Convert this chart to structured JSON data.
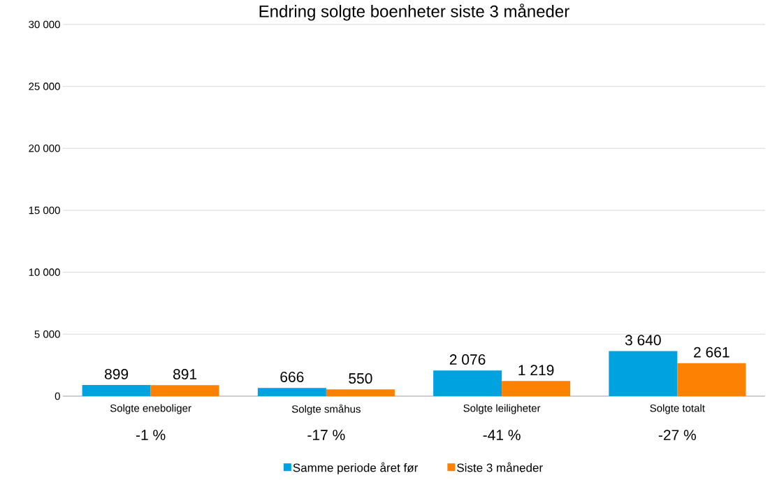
{
  "chart_data": {
    "type": "bar",
    "title": "Endring solgte boenheter siste 3 måneder",
    "categories": [
      "Solgte eneboliger",
      "Solgte småhus",
      "Solgte leiligheter",
      "Solgte totalt"
    ],
    "series": [
      {
        "name": "Samme periode året før",
        "color": "#00a2e0",
        "values": [
          899,
          666,
          2076,
          3640
        ],
        "value_labels": [
          "899",
          "666",
          "2 076",
          "3 640"
        ]
      },
      {
        "name": "Siste 3 måneder",
        "color": "#fd8204",
        "values": [
          891,
          550,
          1219,
          2661
        ],
        "value_labels": [
          "891",
          "550",
          "1 219",
          "2 661"
        ]
      }
    ],
    "ylim": [
      0,
      30000
    ],
    "yticks": [
      {
        "value": 0,
        "label": "0"
      },
      {
        "value": 5000,
        "label": "5 000"
      },
      {
        "value": 10000,
        "label": "10 000"
      },
      {
        "value": 15000,
        "label": "15 000"
      },
      {
        "value": 20000,
        "label": "20 000"
      },
      {
        "value": 25000,
        "label": "25 000"
      },
      {
        "value": 30000,
        "label": "30 000"
      }
    ],
    "grid": "y",
    "legend": "bottom",
    "annotations": [
      "-1 %",
      "-17 %",
      "-41 %",
      "-27 %"
    ]
  }
}
